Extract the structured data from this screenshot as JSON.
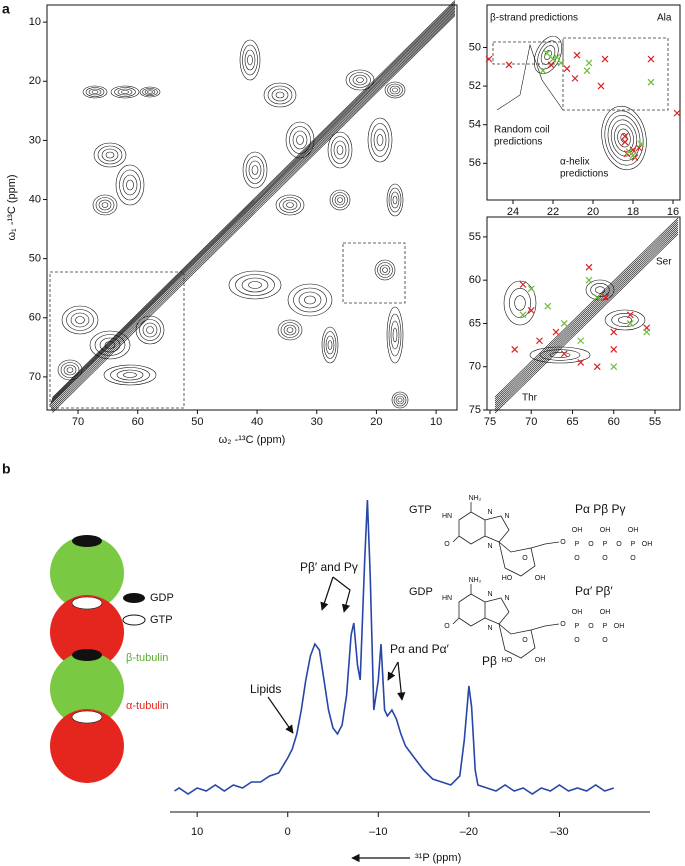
{
  "chart_data": [
    {
      "type": "contour",
      "panel": "a",
      "xlabel": "ω₂ -¹³C (ppm)",
      "ylabel": "ω₁ -¹³C (ppm)",
      "xlim": [
        75.2,
        6.5
      ],
      "ylim": [
        7.1,
        75.6
      ],
      "xticks": [
        70,
        60,
        50,
        40,
        30,
        20,
        10
      ],
      "yticks": [
        10,
        20,
        30,
        40,
        50,
        60,
        70
      ]
    },
    {
      "type": "contour",
      "xlim": [
        25.3,
        15.65
      ],
      "ylim": [
        47.8,
        57.9
      ],
      "xticks": [
        24,
        22,
        20,
        18,
        16
      ],
      "yticks": [
        50,
        52,
        54,
        56
      ],
      "annotations": [
        [
          "β-strand predictions"
        ],
        [
          "Ala"
        ],
        [
          "Random coil",
          "predictions"
        ],
        [
          "α-helix",
          "predictions"
        ]
      ],
      "series": [
        {
          "color": "#e02020",
          "x": [
            25.2,
            24.2,
            22.1,
            21.3,
            20.9,
            19.4,
            17.1,
            20.8,
            19.6,
            18.4,
            18.0,
            17.7,
            18.3,
            17.9,
            15.8,
            18.4
          ],
          "y": [
            50.6,
            50.9,
            50.9,
            51.1,
            51.6,
            50.6,
            50.6,
            50.4,
            52.0,
            54.9,
            55.3,
            55.2,
            55.5,
            55.7,
            53.4,
            54.6
          ]
        },
        {
          "color": "#6cbf3a",
          "x": [
            22.3,
            22.0,
            21.6,
            22.5,
            21.8,
            18.2,
            17.6,
            17.1,
            18.0,
            20.3,
            20.2
          ],
          "y": [
            50.3,
            50.6,
            50.8,
            51.2,
            50.5,
            55.4,
            55.0,
            51.8,
            55.6,
            51.2,
            50.8
          ]
        }
      ]
    },
    {
      "type": "contour",
      "xlim": [
        75.36,
        51.97
      ],
      "ylim": [
        52.7,
        75
      ],
      "xticks": [
        75,
        70,
        65,
        60,
        55
      ],
      "yticks": [
        55,
        60,
        65,
        70,
        75
      ],
      "annotations": [
        [
          "Ser"
        ],
        [
          "Thr"
        ]
      ],
      "series": [
        {
          "color": "#e02020",
          "x": [
            71,
            70,
            69,
            67,
            66,
            64,
            62,
            60,
            58,
            56,
            63,
            61,
            72,
            60
          ],
          "y": [
            60.5,
            63.5,
            67,
            66,
            68.5,
            69.5,
            70,
            68,
            64,
            65.5,
            58.5,
            62,
            68,
            66
          ]
        },
        {
          "color": "#6cbf3a",
          "x": [
            70,
            68,
            66,
            63,
            62,
            58,
            56,
            64,
            60,
            71
          ],
          "y": [
            61,
            63,
            65,
            60,
            62,
            65,
            66,
            67,
            70,
            64
          ]
        }
      ]
    },
    {
      "type": "line",
      "panel": "b",
      "xlabel": "³¹P (ppm)",
      "color": "#2746a8",
      "xlim": [
        13,
        -40
      ],
      "ylim": [
        0,
        100
      ],
      "xticks": [
        10,
        0,
        {
          "value": -10,
          "label": "–10"
        },
        {
          "value": -20,
          "label": "–20"
        },
        {
          "value": -30,
          "label": "–30"
        }
      ],
      "annotations": [
        [
          "Lipids"
        ],
        [
          "Pβ′ and Pγ"
        ],
        [
          "Pα and Pα′"
        ],
        [
          "Pβ"
        ]
      ],
      "x": [
        12.5,
        12,
        11,
        10,
        9,
        8,
        7,
        6,
        5,
        4,
        3,
        2,
        1,
        0,
        -0.5,
        -1,
        -1.5,
        -2,
        -2.5,
        -3,
        -3.5,
        -4,
        -4.5,
        -5,
        -5.5,
        -6,
        -6.5,
        -7,
        -7.3,
        -7.7,
        -8,
        -8.5,
        -8.8,
        -9.1,
        -9.5,
        -10,
        -10.3,
        -10.7,
        -11,
        -11.5,
        -12,
        -12.5,
        -13,
        -14,
        -15,
        -16,
        -17,
        -18,
        -19,
        -19.5,
        -20,
        -20.3,
        -20.7,
        -21,
        -22,
        -23,
        -24,
        -25,
        -26,
        -27,
        -28,
        -29,
        -30,
        -31,
        -32,
        -33,
        -34,
        -35,
        -36
      ],
      "values": [
        3,
        4,
        2,
        4,
        3,
        5,
        3,
        5,
        4,
        6,
        6,
        8,
        9,
        14,
        17,
        22,
        30,
        40,
        48,
        52,
        50,
        40,
        30,
        24,
        22,
        25,
        35,
        55,
        59,
        45,
        40,
        80,
        100,
        75,
        30,
        40,
        52,
        30,
        28,
        30,
        27,
        22,
        18,
        14,
        10,
        7,
        6,
        5,
        8,
        20,
        38,
        31,
        10,
        5,
        4,
        3,
        5,
        3,
        4,
        2,
        4,
        3,
        5,
        3,
        4,
        3,
        5,
        3,
        4
      ]
    }
  ],
  "cartoon": {
    "legend": [
      "GDP",
      "GTP"
    ],
    "subunits": [
      "β-tubulin",
      "α-tubulin"
    ]
  },
  "molecules": [
    {
      "name": "GTP",
      "phosphates": "Pα Pβ Pγ",
      "atoms": [
        "NH₂",
        "N",
        "HN",
        "O",
        "N",
        "N",
        "O",
        "HO",
        "OH",
        "O"
      ],
      "chain": [
        "P",
        "O",
        "P",
        "O",
        "P",
        "OH"
      ],
      "chain_up": [
        "OH",
        "OH",
        "OH"
      ],
      "chain_down": [
        "O",
        "O",
        "O"
      ]
    },
    {
      "name": "GDP",
      "phosphates": "Pα′ Pβ′",
      "atoms": [
        "NH₂",
        "N",
        "HN",
        "O",
        "N",
        "N",
        "O",
        "HO",
        "OH",
        "O"
      ],
      "chain": [
        "P",
        "O",
        "P",
        "OH"
      ],
      "chain_up": [
        "OH",
        "OH"
      ],
      "chain_down": [
        "O",
        "O"
      ]
    }
  ]
}
